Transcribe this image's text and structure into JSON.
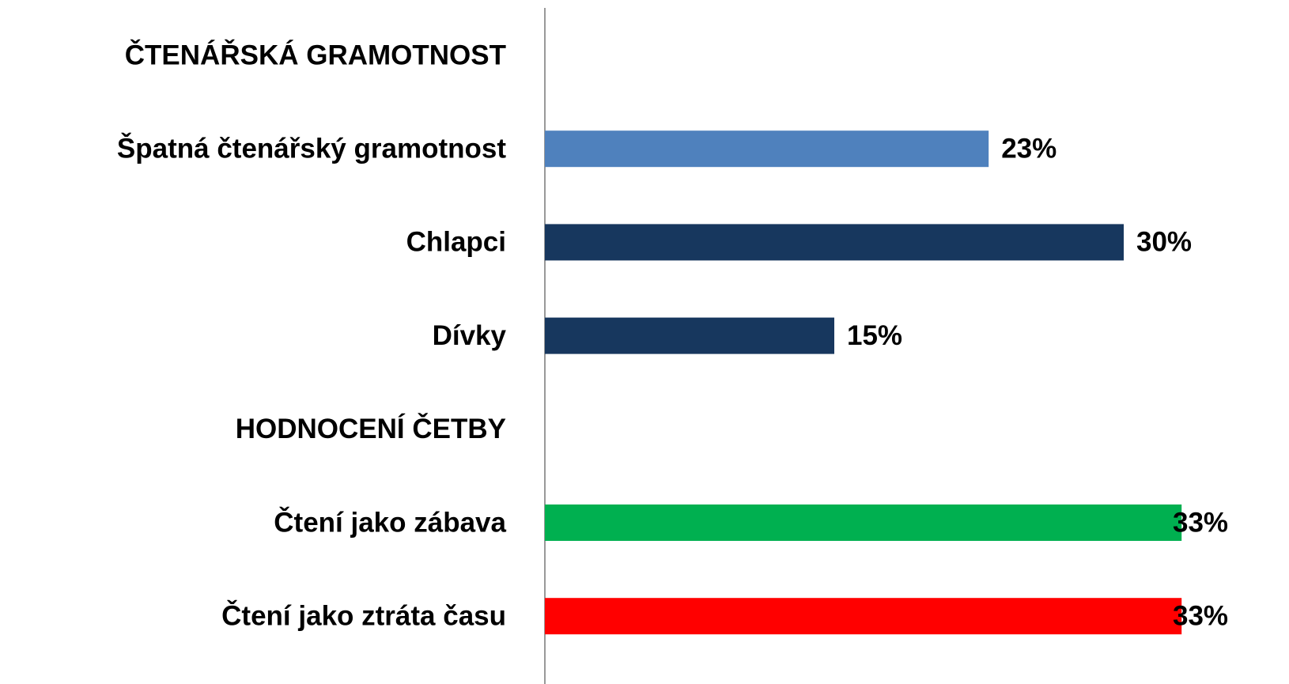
{
  "chart_data": {
    "type": "barh",
    "categories": [
      "ČTENÁŘSKÁ GRAMOTNOST",
      "Špatná čtenářský gramotnost",
      "Chlapci",
      "Dívky",
      "HODNOCENÍ ČETBY",
      "Čtení jako zábava",
      "Čtení jako ztráta času"
    ],
    "values": [
      null,
      23,
      30,
      15,
      null,
      33,
      33
    ],
    "value_labels": [
      null,
      "23%",
      "30%",
      "15%",
      null,
      "33%",
      "33%"
    ],
    "colors": [
      null,
      "#4f81bd",
      "#17375e",
      "#17375e",
      null,
      "#00b050",
      "#ff0000"
    ],
    "xlim": [
      0,
      40
    ]
  }
}
